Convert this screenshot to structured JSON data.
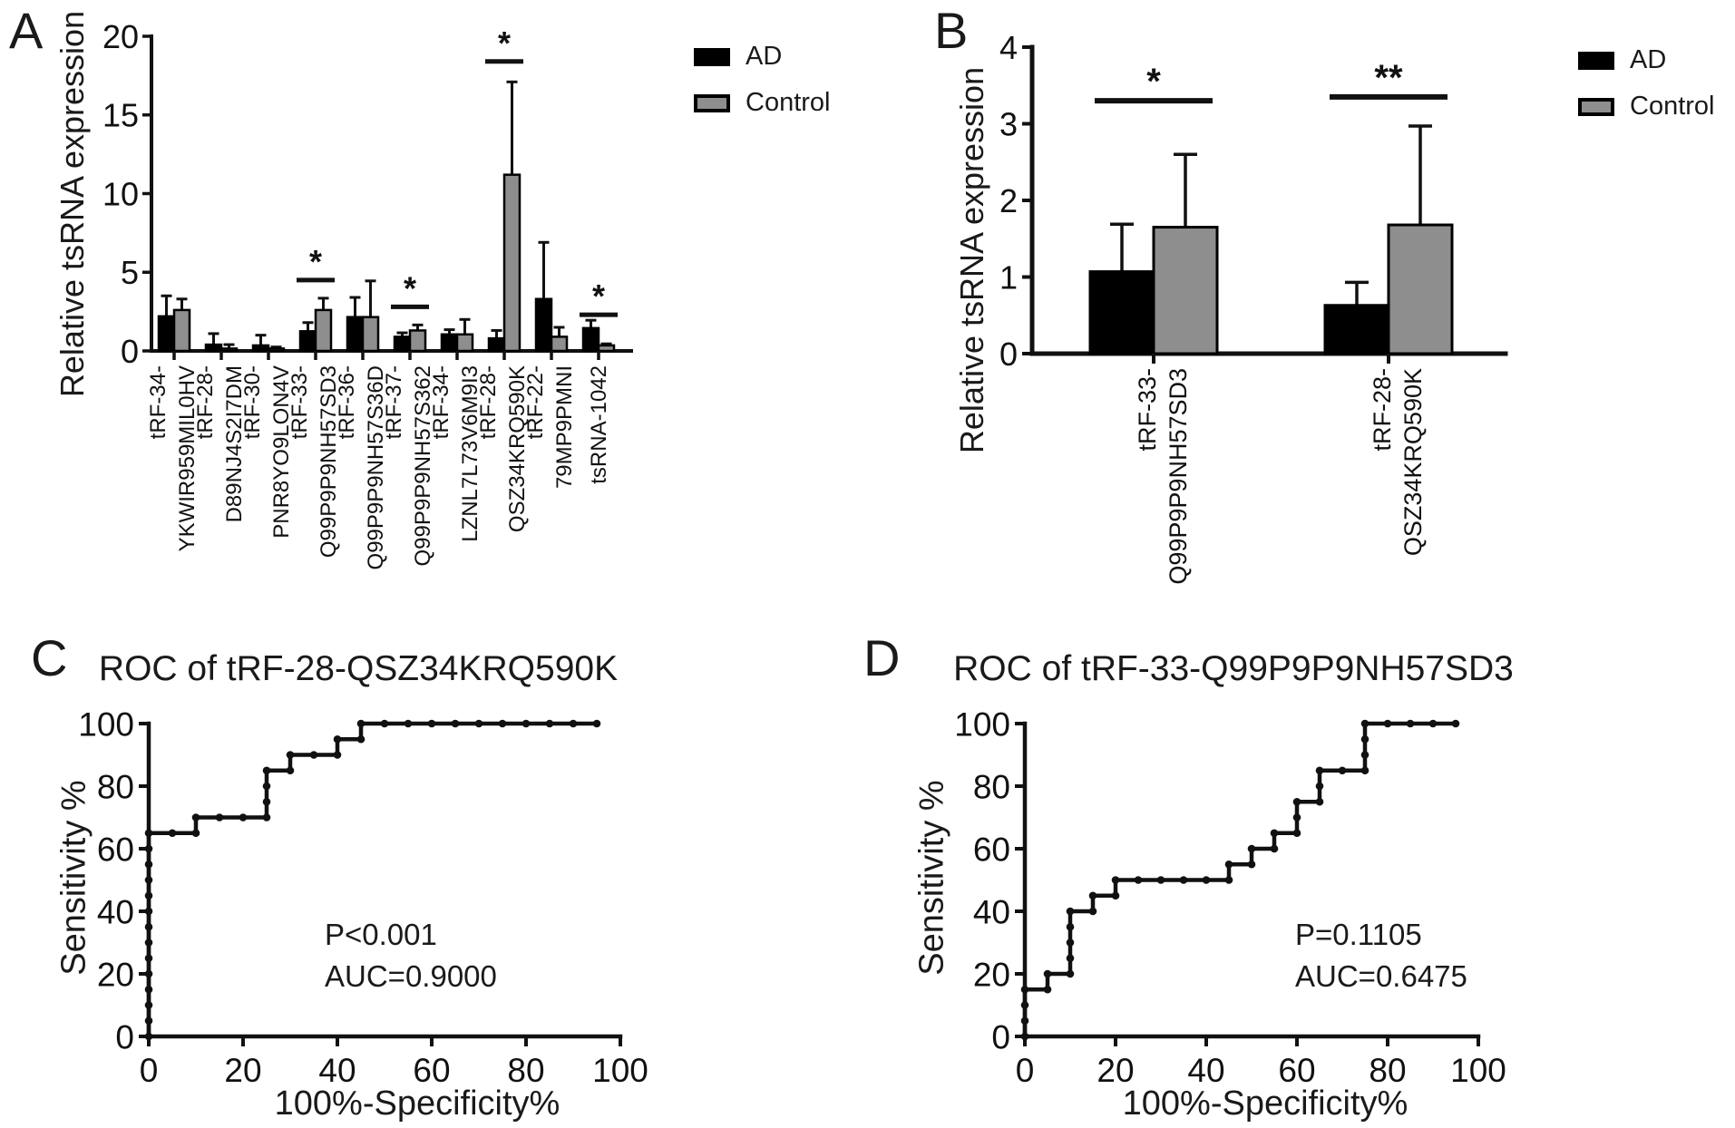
{
  "figure": {
    "background": "#ffffff",
    "foreground": "#000000",
    "description_texts": {
      "ad_label": "AD",
      "control_label": "Control"
    }
  },
  "chart_data": [
    {
      "panel_label": "A",
      "type": "bar",
      "ylabel": "Relative tsRNA expression",
      "ylim": [
        0,
        20
      ],
      "yticks": [
        0,
        5,
        10,
        15,
        20
      ],
      "legend": {
        "position": "right-of-plot-top",
        "entries": [
          {
            "name": "AD",
            "color": "#000000"
          },
          {
            "name": "Control",
            "color": "#8e8e8e"
          }
        ]
      },
      "categories": [
        "tRF-34-YKWIR959MIL0HV",
        "tRF-28-D89NJ4S2I7DM",
        "tRF-30-PNR8YO9LON4V",
        "tRF-33-Q99P9P9NH57SD3",
        "tRF-36-Q99P9P9NH57S36D",
        "tRF-37-Q99P9P9NH57S362",
        "tRF-34-LZNL7L73V6M9I3",
        "tRF-28-QSZ34KRQ590K",
        "tRF-22-79MP9PMNI",
        "tsRNA-1042"
      ],
      "category_label_lines": [
        [
          "tRF-34-",
          "YKWIR959MIL0HV"
        ],
        [
          "tRF-28-",
          "D89NJ4S2I7DM"
        ],
        [
          "tRF-30-",
          "PNR8YO9LON4V"
        ],
        [
          "tRF-33-",
          "Q99P9P9NH57SD3"
        ],
        [
          "tRF-36-",
          "Q99P9P9NH57S36D"
        ],
        [
          "tRF-37-",
          "Q99P9P9NH57S362"
        ],
        [
          "tRF-34-",
          "LZNL7L73V6M9I3"
        ],
        [
          "tRF-28-",
          "QSZ34KRQ590K"
        ],
        [
          "tRF-22-",
          "79MP9PMNI"
        ],
        [
          "tsRNA-1042"
        ]
      ],
      "series": [
        {
          "name": "AD",
          "color": "#000000",
          "values": [
            2.2,
            0.4,
            0.35,
            1.25,
            2.15,
            0.9,
            1.05,
            0.8,
            3.3,
            1.45
          ],
          "errors_plus": [
            1.3,
            0.7,
            0.65,
            0.55,
            1.25,
            0.25,
            0.3,
            0.5,
            3.6,
            0.5
          ]
        },
        {
          "name": "Control",
          "color": "#8e8e8e",
          "values": [
            2.6,
            0.15,
            0.15,
            2.6,
            2.15,
            1.3,
            1.05,
            11.2,
            0.9,
            0.35
          ],
          "errors_plus": [
            0.7,
            0.25,
            0.1,
            0.75,
            2.3,
            0.35,
            0.95,
            5.9,
            0.6,
            0.1
          ]
        }
      ],
      "significance": [
        {
          "category_index": 3,
          "symbol": "*",
          "line_y": 4.5
        },
        {
          "category_index": 5,
          "symbol": "*",
          "line_y": 2.8
        },
        {
          "category_index": 7,
          "symbol": "*",
          "line_y": 18.4
        },
        {
          "category_index": 9,
          "symbol": "*",
          "line_y": 2.3
        }
      ]
    },
    {
      "panel_label": "B",
      "type": "bar",
      "ylabel": "Relative tsRNA expression",
      "ylim": [
        0,
        4
      ],
      "yticks": [
        0,
        1,
        2,
        3,
        4
      ],
      "legend": {
        "position": "right-of-plot-top",
        "entries": [
          {
            "name": "AD",
            "color": "#000000"
          },
          {
            "name": "Control",
            "color": "#8e8e8e"
          }
        ]
      },
      "categories": [
        "tRF-33-Q99P9P9NH57SD3",
        "tRF-28-QSZ34KRQ590K"
      ],
      "category_label_lines": [
        [
          "tRF-33-",
          "Q99P9P9NH57SD3"
        ],
        [
          "tRF-28-",
          "QSZ34KRQ590K"
        ]
      ],
      "series": [
        {
          "name": "AD",
          "color": "#000000",
          "values": [
            1.07,
            0.63
          ],
          "errors_plus": [
            0.62,
            0.3
          ]
        },
        {
          "name": "Control",
          "color": "#8e8e8e",
          "values": [
            1.65,
            1.68
          ],
          "errors_plus": [
            0.95,
            1.29
          ]
        }
      ],
      "significance": [
        {
          "category_index": 0,
          "symbol": "*",
          "line_y": 3.3
        },
        {
          "category_index": 1,
          "symbol": "**",
          "line_y": 3.35
        }
      ]
    },
    {
      "panel_label": "C",
      "type": "line",
      "subtype": "roc-step-curve",
      "title": "ROC of tRF-28-QSZ34KRQ590K",
      "xlabel": "100%-Specificity%",
      "ylabel": "Sensitivity %",
      "xlim": [
        0,
        100
      ],
      "ylim": [
        0,
        100
      ],
      "xticks": [
        0,
        20,
        40,
        60,
        80,
        100
      ],
      "yticks": [
        0,
        20,
        40,
        60,
        80,
        100
      ],
      "annotations": {
        "p_value": "P<0.001",
        "auc": "AUC=0.9000"
      },
      "points": [
        [
          0,
          0
        ],
        [
          0,
          5
        ],
        [
          0,
          10
        ],
        [
          0,
          15
        ],
        [
          0,
          20
        ],
        [
          0,
          25
        ],
        [
          0,
          30
        ],
        [
          0,
          35
        ],
        [
          0,
          40
        ],
        [
          0,
          45
        ],
        [
          0,
          50
        ],
        [
          0,
          55
        ],
        [
          0,
          60
        ],
        [
          0,
          65
        ],
        [
          5,
          65
        ],
        [
          10,
          65
        ],
        [
          10,
          70
        ],
        [
          15,
          70
        ],
        [
          20,
          70
        ],
        [
          25,
          70
        ],
        [
          25,
          75
        ],
        [
          25,
          80
        ],
        [
          25,
          85
        ],
        [
          30,
          85
        ],
        [
          30,
          90
        ],
        [
          35,
          90
        ],
        [
          40,
          90
        ],
        [
          40,
          95
        ],
        [
          45,
          95
        ],
        [
          45,
          100
        ],
        [
          50,
          100
        ],
        [
          55,
          100
        ],
        [
          60,
          100
        ],
        [
          65,
          100
        ],
        [
          70,
          100
        ],
        [
          75,
          100
        ],
        [
          80,
          100
        ],
        [
          85,
          100
        ],
        [
          90,
          100
        ],
        [
          95,
          100
        ]
      ]
    },
    {
      "panel_label": "D",
      "type": "line",
      "subtype": "roc-step-curve",
      "title": "ROC of tRF-33-Q99P9P9NH57SD3",
      "xlabel": "100%-Specificity%",
      "ylabel": "Sensitivity %",
      "xlim": [
        0,
        100
      ],
      "ylim": [
        0,
        100
      ],
      "xticks": [
        0,
        20,
        40,
        60,
        80,
        100
      ],
      "yticks": [
        0,
        20,
        40,
        60,
        80,
        100
      ],
      "annotations": {
        "p_value": "P=0.1105",
        "auc": "AUC=0.6475"
      },
      "points": [
        [
          0,
          0
        ],
        [
          0,
          5
        ],
        [
          0,
          10
        ],
        [
          0,
          15
        ],
        [
          5,
          15
        ],
        [
          5,
          20
        ],
        [
          10,
          20
        ],
        [
          10,
          25
        ],
        [
          10,
          30
        ],
        [
          10,
          35
        ],
        [
          10,
          40
        ],
        [
          15,
          40
        ],
        [
          15,
          45
        ],
        [
          20,
          45
        ],
        [
          20,
          50
        ],
        [
          25,
          50
        ],
        [
          30,
          50
        ],
        [
          35,
          50
        ],
        [
          40,
          50
        ],
        [
          45,
          50
        ],
        [
          45,
          55
        ],
        [
          50,
          55
        ],
        [
          50,
          60
        ],
        [
          55,
          60
        ],
        [
          55,
          65
        ],
        [
          60,
          65
        ],
        [
          60,
          70
        ],
        [
          60,
          75
        ],
        [
          65,
          75
        ],
        [
          65,
          80
        ],
        [
          65,
          85
        ],
        [
          70,
          85
        ],
        [
          75,
          85
        ],
        [
          75,
          90
        ],
        [
          75,
          95
        ],
        [
          75,
          100
        ],
        [
          80,
          100
        ],
        [
          85,
          100
        ],
        [
          90,
          100
        ],
        [
          95,
          100
        ]
      ]
    }
  ]
}
